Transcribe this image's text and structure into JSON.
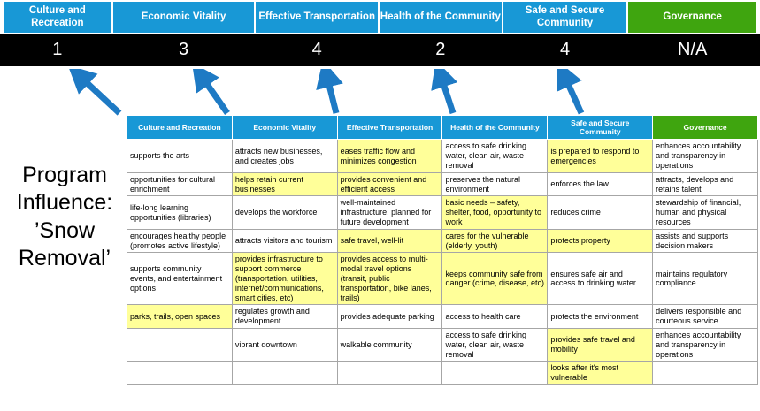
{
  "title": "Program Influence: ’Snow Removal’",
  "colors": {
    "header_blue": "#1898d6",
    "header_green": "#3fa50f",
    "score_band": "#000000",
    "highlight_yellow": "#ffff99",
    "arrow_blue": "#1e7ac4"
  },
  "columns": [
    {
      "label": "Culture and Recreation",
      "score": "1",
      "type": "blue"
    },
    {
      "label": "Economic Vitality",
      "score": "3",
      "type": "blue"
    },
    {
      "label": "Effective Transportation",
      "score": "4",
      "type": "blue"
    },
    {
      "label": "Health of the Community",
      "score": "2",
      "type": "blue"
    },
    {
      "label": "Safe and Secure Community",
      "score": "4",
      "type": "blue"
    },
    {
      "label": "Governance",
      "score": "N/A",
      "type": "green"
    }
  ],
  "matrix_rows": [
    [
      {
        "text": "supports the arts",
        "hl": false
      },
      {
        "text": "attracts new businesses, and creates jobs",
        "hl": false
      },
      {
        "text": "eases traffic flow and minimizes congestion",
        "hl": true
      },
      {
        "text": "access to safe drinking water, clean air, waste removal",
        "hl": false
      },
      {
        "text": "is prepared to respond to emergencies",
        "hl": true
      },
      {
        "text": "enhances accountability and transparency in operations",
        "hl": false
      }
    ],
    [
      {
        "text": "opportunities for cultural enrichment",
        "hl": false
      },
      {
        "text": "helps retain current businesses",
        "hl": true
      },
      {
        "text": "provides convenient and efficient access",
        "hl": true
      },
      {
        "text": "preserves the natural environment",
        "hl": false
      },
      {
        "text": "enforces the law",
        "hl": false
      },
      {
        "text": "attracts, develops and retains talent",
        "hl": false
      }
    ],
    [
      {
        "text": "life-long learning opportunities (libraries)",
        "hl": false
      },
      {
        "text": "develops the workforce",
        "hl": false
      },
      {
        "text": "well-maintained infrastructure, planned for future development",
        "hl": false
      },
      {
        "text": "basic needs – safety, shelter, food, opportunity to work",
        "hl": true
      },
      {
        "text": "reduces crime",
        "hl": false
      },
      {
        "text": "stewardship of financial, human and physical resources",
        "hl": false
      }
    ],
    [
      {
        "text": "encourages healthy people (promotes active lifestyle)",
        "hl": false
      },
      {
        "text": "attracts visitors and tourism",
        "hl": false
      },
      {
        "text": "safe travel, well-lit",
        "hl": true
      },
      {
        "text": "cares for the vulnerable (elderly, youth)",
        "hl": true
      },
      {
        "text": "protects property",
        "hl": true
      },
      {
        "text": "assists and supports decision makers",
        "hl": false
      }
    ],
    [
      {
        "text": "supports community events, and entertainment options",
        "hl": false
      },
      {
        "text": "provides infrastructure to support commerce (transportation, utilities, internet/communications, smart cities, etc)",
        "hl": true
      },
      {
        "text": "provides access to multi-modal travel options (transit, public transportation, bike lanes, trails)",
        "hl": true
      },
      {
        "text": "keeps community safe from danger (crime, disease, etc)",
        "hl": true
      },
      {
        "text": "ensures safe air and access to drinking water",
        "hl": false
      },
      {
        "text": "maintains regulatory compliance",
        "hl": false
      }
    ],
    [
      {
        "text": "parks, trails, open spaces",
        "hl": true
      },
      {
        "text": "regulates growth and development",
        "hl": false
      },
      {
        "text": "provides adequate parking",
        "hl": false
      },
      {
        "text": "access to health care",
        "hl": false
      },
      {
        "text": "protects the environment",
        "hl": false
      },
      {
        "text": "delivers responsible and courteous service",
        "hl": false
      }
    ],
    [
      {
        "text": "",
        "hl": false
      },
      {
        "text": "vibrant downtown",
        "hl": false
      },
      {
        "text": "walkable community",
        "hl": false
      },
      {
        "text": "access to safe drinking water, clean air, waste removal",
        "hl": false
      },
      {
        "text": "provides safe travel and mobility",
        "hl": true
      },
      {
        "text": "enhances accountability and transparency in operations",
        "hl": false
      }
    ],
    [
      {
        "text": "",
        "hl": false
      },
      {
        "text": "",
        "hl": false
      },
      {
        "text": "",
        "hl": false
      },
      {
        "text": "",
        "hl": false
      },
      {
        "text": "looks after it's most vulnerable",
        "hl": true
      },
      {
        "text": "",
        "hl": false
      }
    ]
  ]
}
